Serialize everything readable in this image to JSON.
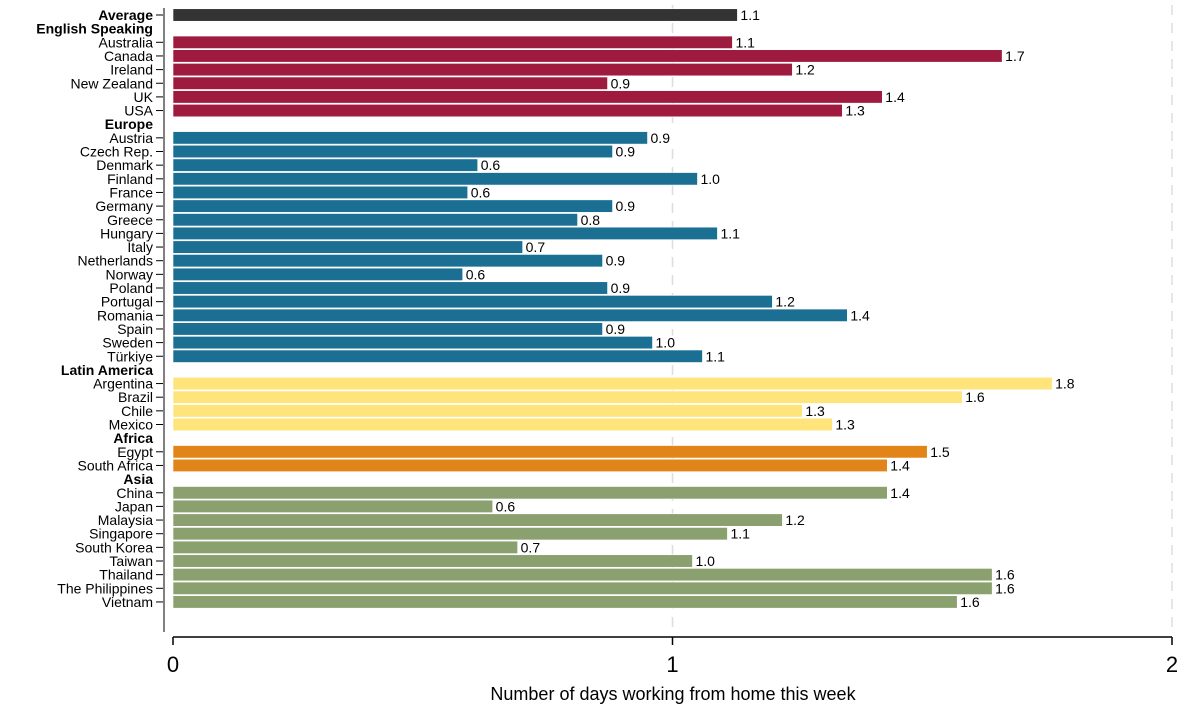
{
  "chart_data": {
    "type": "bar",
    "orientation": "horizontal",
    "xlabel": "Number of days working from home this week",
    "xlim": [
      0,
      2
    ],
    "xticks": [
      0,
      1,
      2
    ],
    "grid": "dashed vertical at x=1 and x=2",
    "legend": "none",
    "groups": [
      {
        "name": "Average",
        "color": "#333333",
        "items": [
          {
            "label": "",
            "value": 1.13,
            "value_label": "1.1"
          }
        ]
      },
      {
        "name": "English Speaking",
        "color": "#9E1B3F",
        "items": [
          {
            "label": "Australia",
            "value": 1.12,
            "value_label": "1.1"
          },
          {
            "label": "Canada",
            "value": 1.66,
            "value_label": "1.7"
          },
          {
            "label": "Ireland",
            "value": 1.24,
            "value_label": "1.2"
          },
          {
            "label": "New Zealand",
            "value": 0.87,
            "value_label": "0.9"
          },
          {
            "label": "UK",
            "value": 1.42,
            "value_label": "1.4"
          },
          {
            "label": "USA",
            "value": 1.34,
            "value_label": "1.3"
          }
        ]
      },
      {
        "name": "Europe",
        "color": "#1A6F93",
        "items": [
          {
            "label": "Austria",
            "value": 0.95,
            "value_label": "0.9"
          },
          {
            "label": "Czech Rep.",
            "value": 0.88,
            "value_label": "0.9"
          },
          {
            "label": "Denmark",
            "value": 0.61,
            "value_label": "0.6"
          },
          {
            "label": "Finland",
            "value": 1.05,
            "value_label": "1.0"
          },
          {
            "label": "France",
            "value": 0.59,
            "value_label": "0.6"
          },
          {
            "label": "Germany",
            "value": 0.88,
            "value_label": "0.9"
          },
          {
            "label": "Greece",
            "value": 0.81,
            "value_label": "0.8"
          },
          {
            "label": "Hungary",
            "value": 1.09,
            "value_label": "1.1"
          },
          {
            "label": "Italy",
            "value": 0.7,
            "value_label": "0.7"
          },
          {
            "label": "Netherlands",
            "value": 0.86,
            "value_label": "0.9"
          },
          {
            "label": "Norway",
            "value": 0.58,
            "value_label": "0.6"
          },
          {
            "label": "Poland",
            "value": 0.87,
            "value_label": "0.9"
          },
          {
            "label": "Portugal",
            "value": 1.2,
            "value_label": "1.2"
          },
          {
            "label": "Romania",
            "value": 1.35,
            "value_label": "1.4"
          },
          {
            "label": "Spain",
            "value": 0.86,
            "value_label": "0.9"
          },
          {
            "label": "Sweden",
            "value": 0.96,
            "value_label": "1.0"
          },
          {
            "label": "Türkiye",
            "value": 1.06,
            "value_label": "1.1"
          }
        ]
      },
      {
        "name": "Latin America",
        "color": "#FEE47A",
        "items": [
          {
            "label": "Argentina",
            "value": 1.76,
            "value_label": "1.8"
          },
          {
            "label": "Brazil",
            "value": 1.58,
            "value_label": "1.6"
          },
          {
            "label": "Chile",
            "value": 1.26,
            "value_label": "1.3"
          },
          {
            "label": "Mexico",
            "value": 1.32,
            "value_label": "1.3"
          }
        ]
      },
      {
        "name": "Africa",
        "color": "#E28518",
        "items": [
          {
            "label": "Egypt",
            "value": 1.51,
            "value_label": "1.5"
          },
          {
            "label": "South Africa",
            "value": 1.43,
            "value_label": "1.4"
          }
        ]
      },
      {
        "name": "Asia",
        "color": "#8AA06E",
        "items": [
          {
            "label": "China",
            "value": 1.43,
            "value_label": "1.4"
          },
          {
            "label": "Japan",
            "value": 0.64,
            "value_label": "0.6"
          },
          {
            "label": "Malaysia",
            "value": 1.22,
            "value_label": "1.2"
          },
          {
            "label": "Singapore",
            "value": 1.11,
            "value_label": "1.1"
          },
          {
            "label": "South Korea",
            "value": 0.69,
            "value_label": "0.7"
          },
          {
            "label": "Taiwan",
            "value": 1.04,
            "value_label": "1.0"
          },
          {
            "label": "Thailand",
            "value": 1.64,
            "value_label": "1.6"
          },
          {
            "label": "The Philippines",
            "value": 1.64,
            "value_label": "1.6"
          },
          {
            "label": "Vietnam",
            "value": 1.57,
            "value_label": "1.6"
          }
        ]
      }
    ]
  }
}
